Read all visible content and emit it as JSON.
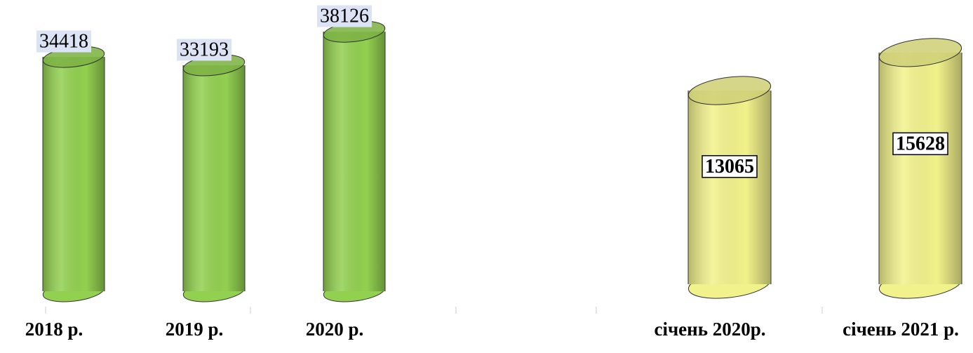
{
  "chart_data": [
    {
      "type": "bar",
      "categories": [
        "2018 р.",
        "2019 р.",
        "2020 р."
      ],
      "values": [
        34418,
        33193,
        38126
      ],
      "color": "#92d050",
      "ylim": [
        0,
        40000
      ]
    },
    {
      "type": "bar",
      "categories": [
        "січень 2020р.",
        "січень 2021 р."
      ],
      "values": [
        13065,
        15628
      ],
      "color": "#f2f28c",
      "ylim": [
        0,
        16000
      ]
    }
  ]
}
